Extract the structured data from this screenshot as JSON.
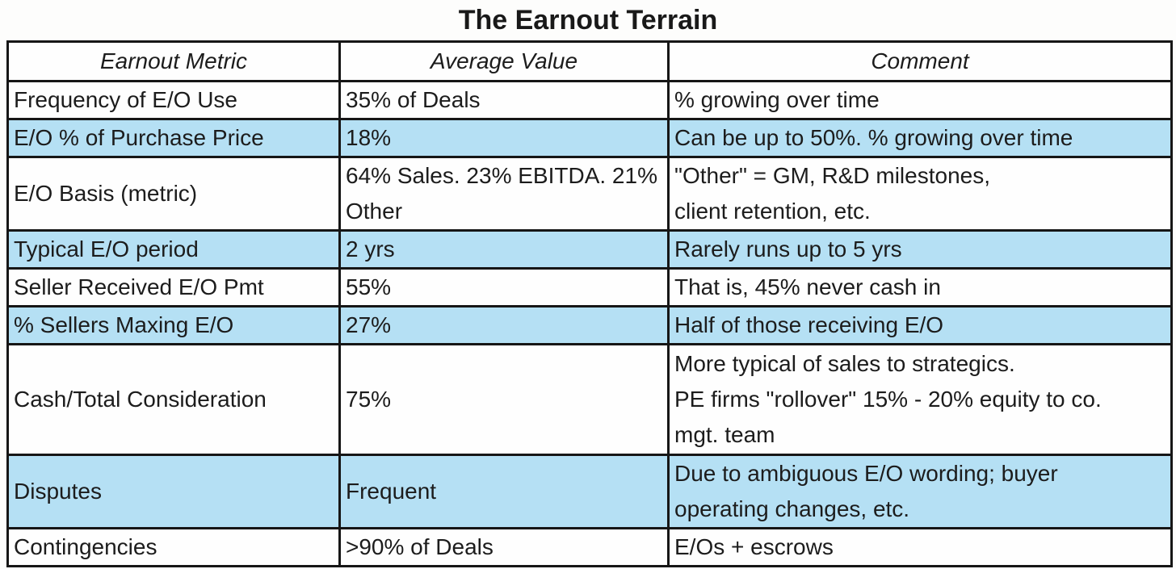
{
  "title": "The Earnout Terrain",
  "table": {
    "highlight_color": "#b5e0f4",
    "headers": [
      "Earnout Metric",
      "Average Value",
      "Comment"
    ],
    "rows": [
      {
        "metric": "Frequency of E/O Use",
        "value": "35% of Deals",
        "comment": "% growing over time",
        "highlight": false
      },
      {
        "metric": "E/O % of Purchase Price",
        "value": "18%",
        "comment": "Can be up to 50%. % growing over time",
        "highlight": true
      },
      {
        "metric": "E/O Basis (metric)",
        "value": "64% Sales. 23% EBITDA. 21%\nOther",
        "comment": "\"Other\" = GM, R&D milestones,\nclient retention, etc.",
        "highlight": false
      },
      {
        "metric": "Typical E/O period",
        "value": "2 yrs",
        "comment": "Rarely runs up to 5 yrs",
        "highlight": true
      },
      {
        "metric": "Seller Received E/O Pmt",
        "value": "55%",
        "comment": "That is, 45% never cash in",
        "highlight": false
      },
      {
        "metric": "% Sellers Maxing E/O",
        "value": "27%",
        "comment": "Half of those receiving E/O",
        "highlight": true
      },
      {
        "metric": "Cash/Total Consideration",
        "value": "75%",
        "comment": "More typical of sales to strategics.\nPE firms \"rollover\" 15% - 20% equity to co.\nmgt. team",
        "highlight": false
      },
      {
        "metric": "Disputes",
        "value": "Frequent",
        "comment": "Due to ambiguous E/O wording; buyer\noperating changes, etc.",
        "highlight": true
      },
      {
        "metric": "Contingencies",
        "value": ">90% of Deals",
        "comment": "E/Os + escrows",
        "highlight": false
      }
    ]
  }
}
